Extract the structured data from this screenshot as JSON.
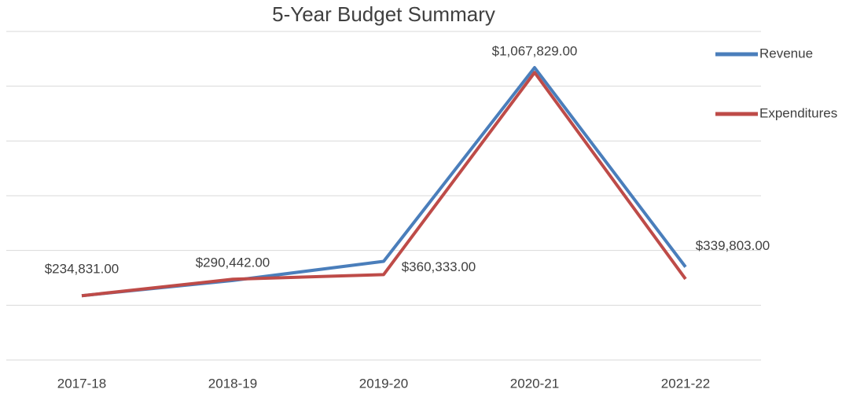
{
  "chart_data": {
    "type": "line",
    "title": "5-Year Budget Summary",
    "categories": [
      "2017-18",
      "2018-19",
      "2019-20",
      "2020-21",
      "2021-22"
    ],
    "series": [
      {
        "name": "Revenue",
        "color": "#4a7ebb",
        "values": [
          234831,
          290442,
          360333,
          1067829,
          339803
        ],
        "value_labels": [
          "$234,831.00",
          "$290,442.00",
          "$360,333.00",
          "$1,067,829.00",
          "$339,803.00"
        ]
      },
      {
        "name": "Expenditures",
        "color": "#be4b48",
        "values": [
          234831,
          295000,
          312000,
          1050000,
          296000
        ]
      }
    ],
    "ylim": [
      0,
      1200000
    ],
    "yticks": [
      0,
      200000,
      400000,
      600000,
      800000,
      1000000,
      1200000
    ],
    "grid": true,
    "legend": "right"
  }
}
